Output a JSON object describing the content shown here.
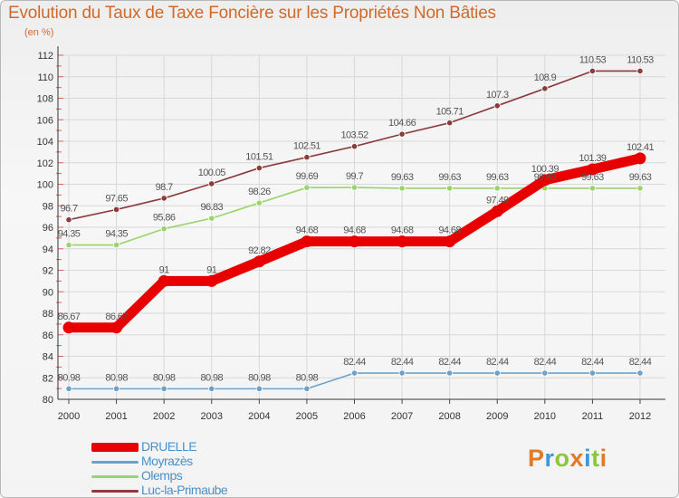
{
  "title": "Evolution du Taux de Taxe Foncière sur les Propriétés Non Bâties",
  "subtitle": "(en %)",
  "logo": {
    "text": "Proxiti",
    "letters": [
      "P",
      "r",
      "o",
      "x",
      "i",
      "t",
      "i"
    ],
    "colors": [
      "#e07b2a",
      "#3a9ad9",
      "#8cc63f",
      "#e07b2a",
      "#3a9ad9",
      "#8cc63f",
      "#e07b2a"
    ]
  },
  "chart_data": {
    "type": "line",
    "x": [
      "2000",
      "2001",
      "2002",
      "2003",
      "2004",
      "2005",
      "2006",
      "2007",
      "2008",
      "2009",
      "2010",
      "2011",
      "2012"
    ],
    "ylim": [
      80,
      112
    ],
    "yticks": [
      "80",
      "82",
      "84",
      "86",
      "88",
      "90",
      "92",
      "94",
      "96",
      "98",
      "100",
      "102",
      "104",
      "106",
      "108",
      "110",
      "112"
    ],
    "grid": true,
    "legend_position": "bottom-left",
    "series": [
      {
        "name": "DRUELLE",
        "color": "#e80000",
        "width": 11,
        "values": [
          86.67,
          86.67,
          91,
          91,
          92.82,
          94.68,
          94.68,
          94.68,
          94.68,
          97.49,
          100.39,
          101.39,
          102.41
        ],
        "labels": [
          "86.67",
          "86.67",
          "91",
          "91",
          "92.82",
          "94.68",
          "94.68",
          "94.68",
          "94.68",
          "97.49",
          "100.39",
          "101.39",
          "102.41"
        ]
      },
      {
        "name": "Moyrazès",
        "color": "#6fa1c7",
        "width": 1.6,
        "values": [
          80.98,
          80.98,
          80.98,
          80.98,
          80.98,
          80.98,
          82.44,
          82.44,
          82.44,
          82.44,
          82.44,
          82.44,
          82.44
        ],
        "labels": [
          "80.98",
          "80.98",
          "80.98",
          "80.98",
          "80.98",
          "80.98",
          "82.44",
          "82.44",
          "82.44",
          "82.44",
          "82.44",
          "82.44",
          "82.44"
        ]
      },
      {
        "name": "Olemps",
        "color": "#99d36b",
        "width": 1.6,
        "values": [
          94.35,
          94.35,
          95.86,
          96.83,
          98.26,
          99.69,
          99.7,
          99.63,
          99.63,
          99.63,
          99.63,
          99.63,
          99.63
        ],
        "labels": [
          "94.35",
          "94.35",
          "95.86",
          "96.83",
          "98.26",
          "99.69",
          "99.7",
          "99.63",
          "99.63",
          "99.63",
          "99.63",
          "99.63",
          "99.63"
        ]
      },
      {
        "name": "Luc-la-Primaube",
        "color": "#8b3b3b",
        "width": 1.6,
        "values": [
          96.7,
          97.65,
          98.7,
          100.05,
          101.51,
          102.51,
          103.52,
          104.66,
          105.71,
          107.3,
          108.9,
          110.53,
          110.53
        ],
        "labels": [
          "96.7",
          "97.65",
          "98.7",
          "100.05",
          "101.51",
          "102.51",
          "103.52",
          "104.66",
          "105.71",
          "107.3",
          "108.9",
          "110.53",
          "110.53"
        ]
      }
    ]
  }
}
